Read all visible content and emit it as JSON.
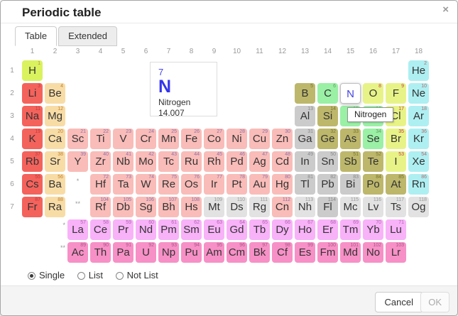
{
  "dialog": {
    "title": "Periodic table",
    "close_icon": "×"
  },
  "tabs": [
    {
      "label": "Table",
      "active": true
    },
    {
      "label": "Extended",
      "active": false
    }
  ],
  "colors": {
    "h": "#d9f25e",
    "alk": "#f4625c",
    "alke": "#f8dca6",
    "trans": "#f9bcb8",
    "post": "#cbcbcb",
    "met": "#bdb76b",
    "poly": "#9af0a5",
    "dia": "#e8f387",
    "noble": "#aeeff2",
    "lan": "#f8b2f8",
    "act": "#f790c6",
    "unk": "#e2e2e2",
    "selected_symbol": "#4343e0",
    "detail_blue": "#3535ec"
  },
  "num_colors": {
    "h": "#b08840",
    "alk": "#c03a3a",
    "alke": "#c08030",
    "trans": "#9070a8",
    "post": "#888888",
    "met": "#77722e",
    "poly": "#60a060",
    "dia": "#c04040",
    "noble": "#b36a6a",
    "lan": "#b060b0",
    "act": "#a85588",
    "unk": "#999999"
  },
  "table": {
    "column_headers": [
      "1",
      "2",
      "3",
      "4",
      "5",
      "6",
      "7",
      "8",
      "9",
      "10",
      "11",
      "12",
      "13",
      "14",
      "15",
      "16",
      "17",
      "18"
    ],
    "row_headers": [
      "1",
      "2",
      "3",
      "4",
      "5",
      "6",
      "7"
    ],
    "markers": {
      "period6": "*",
      "period7": "**",
      "lanthanide_row": "*",
      "actinide_row": "**"
    },
    "elements": [
      {
        "s": "H",
        "n": 1,
        "c": 1,
        "r": 1,
        "g": "h"
      },
      {
        "s": "He",
        "n": 2,
        "c": 18,
        "r": 1,
        "g": "noble"
      },
      {
        "s": "Li",
        "n": 3,
        "c": 1,
        "r": 2,
        "g": "alk"
      },
      {
        "s": "Be",
        "n": 4,
        "c": 2,
        "r": 2,
        "g": "alke"
      },
      {
        "s": "B",
        "n": 5,
        "c": 13,
        "r": 2,
        "g": "met"
      },
      {
        "s": "C",
        "n": 6,
        "c": 14,
        "r": 2,
        "g": "poly"
      },
      {
        "s": "N",
        "n": 7,
        "c": 15,
        "r": 2,
        "g": "dia",
        "sel": true
      },
      {
        "s": "O",
        "n": 8,
        "c": 16,
        "r": 2,
        "g": "dia"
      },
      {
        "s": "F",
        "n": 9,
        "c": 17,
        "r": 2,
        "g": "dia"
      },
      {
        "s": "Ne",
        "n": 10,
        "c": 18,
        "r": 2,
        "g": "noble"
      },
      {
        "s": "Na",
        "n": 11,
        "c": 1,
        "r": 3,
        "g": "alk"
      },
      {
        "s": "Mg",
        "n": 12,
        "c": 2,
        "r": 3,
        "g": "alke"
      },
      {
        "s": "Al",
        "n": 13,
        "c": 13,
        "r": 3,
        "g": "post"
      },
      {
        "s": "Si",
        "n": 14,
        "c": 14,
        "r": 3,
        "g": "met"
      },
      {
        "s": "P",
        "n": 15,
        "c": 15,
        "r": 3,
        "g": "poly"
      },
      {
        "s": "S",
        "n": 16,
        "c": 16,
        "r": 3,
        "g": "poly"
      },
      {
        "s": "Cl",
        "n": 17,
        "c": 17,
        "r": 3,
        "g": "dia"
      },
      {
        "s": "Ar",
        "n": 18,
        "c": 18,
        "r": 3,
        "g": "noble"
      },
      {
        "s": "K",
        "n": 19,
        "c": 1,
        "r": 4,
        "g": "alk"
      },
      {
        "s": "Ca",
        "n": 20,
        "c": 2,
        "r": 4,
        "g": "alke"
      },
      {
        "s": "Sc",
        "n": 21,
        "c": 3,
        "r": 4,
        "g": "trans"
      },
      {
        "s": "Ti",
        "n": 22,
        "c": 4,
        "r": 4,
        "g": "trans"
      },
      {
        "s": "V",
        "n": 23,
        "c": 5,
        "r": 4,
        "g": "trans"
      },
      {
        "s": "Cr",
        "n": 24,
        "c": 6,
        "r": 4,
        "g": "trans"
      },
      {
        "s": "Mn",
        "n": 25,
        "c": 7,
        "r": 4,
        "g": "trans"
      },
      {
        "s": "Fe",
        "n": 26,
        "c": 8,
        "r": 4,
        "g": "trans"
      },
      {
        "s": "Co",
        "n": 27,
        "c": 9,
        "r": 4,
        "g": "trans"
      },
      {
        "s": "Ni",
        "n": 28,
        "c": 10,
        "r": 4,
        "g": "trans"
      },
      {
        "s": "Cu",
        "n": 29,
        "c": 11,
        "r": 4,
        "g": "trans"
      },
      {
        "s": "Zn",
        "n": 30,
        "c": 12,
        "r": 4,
        "g": "trans"
      },
      {
        "s": "Ga",
        "n": 31,
        "c": 13,
        "r": 4,
        "g": "post"
      },
      {
        "s": "Ge",
        "n": 32,
        "c": 14,
        "r": 4,
        "g": "met"
      },
      {
        "s": "As",
        "n": 33,
        "c": 15,
        "r": 4,
        "g": "met"
      },
      {
        "s": "Se",
        "n": 34,
        "c": 16,
        "r": 4,
        "g": "poly"
      },
      {
        "s": "Br",
        "n": 35,
        "c": 17,
        "r": 4,
        "g": "dia"
      },
      {
        "s": "Kr",
        "n": 36,
        "c": 18,
        "r": 4,
        "g": "noble"
      },
      {
        "s": "Rb",
        "n": 37,
        "c": 1,
        "r": 5,
        "g": "alk"
      },
      {
        "s": "Sr",
        "n": 38,
        "c": 2,
        "r": 5,
        "g": "alke"
      },
      {
        "s": "Y",
        "n": 39,
        "c": 3,
        "r": 5,
        "g": "trans"
      },
      {
        "s": "Zr",
        "n": 40,
        "c": 4,
        "r": 5,
        "g": "trans"
      },
      {
        "s": "Nb",
        "n": 41,
        "c": 5,
        "r": 5,
        "g": "trans"
      },
      {
        "s": "Mo",
        "n": 42,
        "c": 6,
        "r": 5,
        "g": "trans"
      },
      {
        "s": "Tc",
        "n": 43,
        "c": 7,
        "r": 5,
        "g": "trans"
      },
      {
        "s": "Ru",
        "n": 44,
        "c": 8,
        "r": 5,
        "g": "trans"
      },
      {
        "s": "Rh",
        "n": 45,
        "c": 9,
        "r": 5,
        "g": "trans"
      },
      {
        "s": "Pd",
        "n": 46,
        "c": 10,
        "r": 5,
        "g": "trans"
      },
      {
        "s": "Ag",
        "n": 47,
        "c": 11,
        "r": 5,
        "g": "trans"
      },
      {
        "s": "Cd",
        "n": 48,
        "c": 12,
        "r": 5,
        "g": "trans"
      },
      {
        "s": "In",
        "n": 49,
        "c": 13,
        "r": 5,
        "g": "post"
      },
      {
        "s": "Sn",
        "n": 50,
        "c": 14,
        "r": 5,
        "g": "post"
      },
      {
        "s": "Sb",
        "n": 51,
        "c": 15,
        "r": 5,
        "g": "met"
      },
      {
        "s": "Te",
        "n": 52,
        "c": 16,
        "r": 5,
        "g": "met"
      },
      {
        "s": "I",
        "n": 53,
        "c": 17,
        "r": 5,
        "g": "dia"
      },
      {
        "s": "Xe",
        "n": 54,
        "c": 18,
        "r": 5,
        "g": "noble"
      },
      {
        "s": "Cs",
        "n": 55,
        "c": 1,
        "r": 6,
        "g": "alk"
      },
      {
        "s": "Ba",
        "n": 56,
        "c": 2,
        "r": 6,
        "g": "alke"
      },
      {
        "s": "Hf",
        "n": 72,
        "c": 4,
        "r": 6,
        "g": "trans"
      },
      {
        "s": "Ta",
        "n": 73,
        "c": 5,
        "r": 6,
        "g": "trans"
      },
      {
        "s": "W",
        "n": 74,
        "c": 6,
        "r": 6,
        "g": "trans"
      },
      {
        "s": "Re",
        "n": 75,
        "c": 7,
        "r": 6,
        "g": "trans"
      },
      {
        "s": "Os",
        "n": 76,
        "c": 8,
        "r": 6,
        "g": "trans"
      },
      {
        "s": "Ir",
        "n": 77,
        "c": 9,
        "r": 6,
        "g": "trans"
      },
      {
        "s": "Pt",
        "n": 78,
        "c": 10,
        "r": 6,
        "g": "trans"
      },
      {
        "s": "Au",
        "n": 79,
        "c": 11,
        "r": 6,
        "g": "trans"
      },
      {
        "s": "Hg",
        "n": 80,
        "c": 12,
        "r": 6,
        "g": "trans"
      },
      {
        "s": "Tl",
        "n": 81,
        "c": 13,
        "r": 6,
        "g": "post"
      },
      {
        "s": "Pb",
        "n": 82,
        "c": 14,
        "r": 6,
        "g": "post"
      },
      {
        "s": "Bi",
        "n": 83,
        "c": 15,
        "r": 6,
        "g": "post"
      },
      {
        "s": "Po",
        "n": 84,
        "c": 16,
        "r": 6,
        "g": "met"
      },
      {
        "s": "At",
        "n": 85,
        "c": 17,
        "r": 6,
        "g": "met"
      },
      {
        "s": "Rn",
        "n": 86,
        "c": 18,
        "r": 6,
        "g": "noble"
      },
      {
        "s": "Fr",
        "n": 87,
        "c": 1,
        "r": 7,
        "g": "alk"
      },
      {
        "s": "Ra",
        "n": 88,
        "c": 2,
        "r": 7,
        "g": "alke"
      },
      {
        "s": "Rf",
        "n": 104,
        "c": 4,
        "r": 7,
        "g": "trans"
      },
      {
        "s": "Db",
        "n": 105,
        "c": 5,
        "r": 7,
        "g": "trans"
      },
      {
        "s": "Sg",
        "n": 106,
        "c": 6,
        "r": 7,
        "g": "trans"
      },
      {
        "s": "Bh",
        "n": 107,
        "c": 7,
        "r": 7,
        "g": "trans"
      },
      {
        "s": "Hs",
        "n": 108,
        "c": 8,
        "r": 7,
        "g": "trans"
      },
      {
        "s": "Mt",
        "n": 109,
        "c": 9,
        "r": 7,
        "g": "unk"
      },
      {
        "s": "Ds",
        "n": 110,
        "c": 10,
        "r": 7,
        "g": "unk"
      },
      {
        "s": "Rg",
        "n": 111,
        "c": 11,
        "r": 7,
        "g": "unk"
      },
      {
        "s": "Cn",
        "n": 112,
        "c": 12,
        "r": 7,
        "g": "trans"
      },
      {
        "s": "Nh",
        "n": 113,
        "c": 13,
        "r": 7,
        "g": "unk"
      },
      {
        "s": "Fl",
        "n": 114,
        "c": 14,
        "r": 7,
        "g": "post"
      },
      {
        "s": "Mc",
        "n": 115,
        "c": 15,
        "r": 7,
        "g": "unk"
      },
      {
        "s": "Lv",
        "n": 116,
        "c": 16,
        "r": 7,
        "g": "unk"
      },
      {
        "s": "Ts",
        "n": 117,
        "c": 17,
        "r": 7,
        "g": "unk"
      },
      {
        "s": "Og",
        "n": 118,
        "c": 18,
        "r": 7,
        "g": "unk"
      },
      {
        "s": "La",
        "n": 57,
        "c": 3,
        "r": 8,
        "g": "lan"
      },
      {
        "s": "Ce",
        "n": 58,
        "c": 4,
        "r": 8,
        "g": "lan"
      },
      {
        "s": "Pr",
        "n": 59,
        "c": 5,
        "r": 8,
        "g": "lan"
      },
      {
        "s": "Nd",
        "n": 60,
        "c": 6,
        "r": 8,
        "g": "lan"
      },
      {
        "s": "Pm",
        "n": 61,
        "c": 7,
        "r": 8,
        "g": "lan"
      },
      {
        "s": "Sm",
        "n": 62,
        "c": 8,
        "r": 8,
        "g": "lan"
      },
      {
        "s": "Eu",
        "n": 63,
        "c": 9,
        "r": 8,
        "g": "lan"
      },
      {
        "s": "Gd",
        "n": 64,
        "c": 10,
        "r": 8,
        "g": "lan"
      },
      {
        "s": "Tb",
        "n": 65,
        "c": 11,
        "r": 8,
        "g": "lan"
      },
      {
        "s": "Dy",
        "n": 66,
        "c": 12,
        "r": 8,
        "g": "lan"
      },
      {
        "s": "Ho",
        "n": 67,
        "c": 13,
        "r": 8,
        "g": "lan"
      },
      {
        "s": "Er",
        "n": 68,
        "c": 14,
        "r": 8,
        "g": "lan"
      },
      {
        "s": "Tm",
        "n": 69,
        "c": 15,
        "r": 8,
        "g": "lan"
      },
      {
        "s": "Yb",
        "n": 70,
        "c": 16,
        "r": 8,
        "g": "lan"
      },
      {
        "s": "Lu",
        "n": 71,
        "c": 17,
        "r": 8,
        "g": "lan"
      },
      {
        "s": "Ac",
        "n": 89,
        "c": 3,
        "r": 9,
        "g": "act"
      },
      {
        "s": "Th",
        "n": 90,
        "c": 4,
        "r": 9,
        "g": "act"
      },
      {
        "s": "Pa",
        "n": 91,
        "c": 5,
        "r": 9,
        "g": "act"
      },
      {
        "s": "U",
        "n": 92,
        "c": 6,
        "r": 9,
        "g": "act"
      },
      {
        "s": "Np",
        "n": 93,
        "c": 7,
        "r": 9,
        "g": "act"
      },
      {
        "s": "Pu",
        "n": 94,
        "c": 8,
        "r": 9,
        "g": "act"
      },
      {
        "s": "Am",
        "n": 95,
        "c": 9,
        "r": 9,
        "g": "act"
      },
      {
        "s": "Cm",
        "n": 96,
        "c": 10,
        "r": 9,
        "g": "act"
      },
      {
        "s": "Bk",
        "n": 97,
        "c": 11,
        "r": 9,
        "g": "act"
      },
      {
        "s": "Cf",
        "n": 98,
        "c": 12,
        "r": 9,
        "g": "act"
      },
      {
        "s": "Es",
        "n": 99,
        "c": 13,
        "r": 9,
        "g": "act"
      },
      {
        "s": "Fm",
        "n": 100,
        "c": 14,
        "r": 9,
        "g": "act"
      },
      {
        "s": "Md",
        "n": 101,
        "c": 15,
        "r": 9,
        "g": "act"
      },
      {
        "s": "No",
        "n": 102,
        "c": 16,
        "r": 9,
        "g": "act"
      },
      {
        "s": "Lr",
        "n": 103,
        "c": 17,
        "r": 9,
        "g": "act"
      }
    ]
  },
  "detail_card": {
    "number": "7",
    "symbol": "N",
    "name": "Nitrogen",
    "mass": "14.007"
  },
  "tooltip": {
    "text": "Nitrogen"
  },
  "selection": {
    "symbol": "N",
    "mode": "Single"
  },
  "modes": [
    {
      "label": "Single",
      "selected": true
    },
    {
      "label": "List",
      "selected": false
    },
    {
      "label": "Not List",
      "selected": false
    }
  ],
  "footer": {
    "cancel_label": "Cancel",
    "ok_label": "OK",
    "ok_disabled": true
  }
}
